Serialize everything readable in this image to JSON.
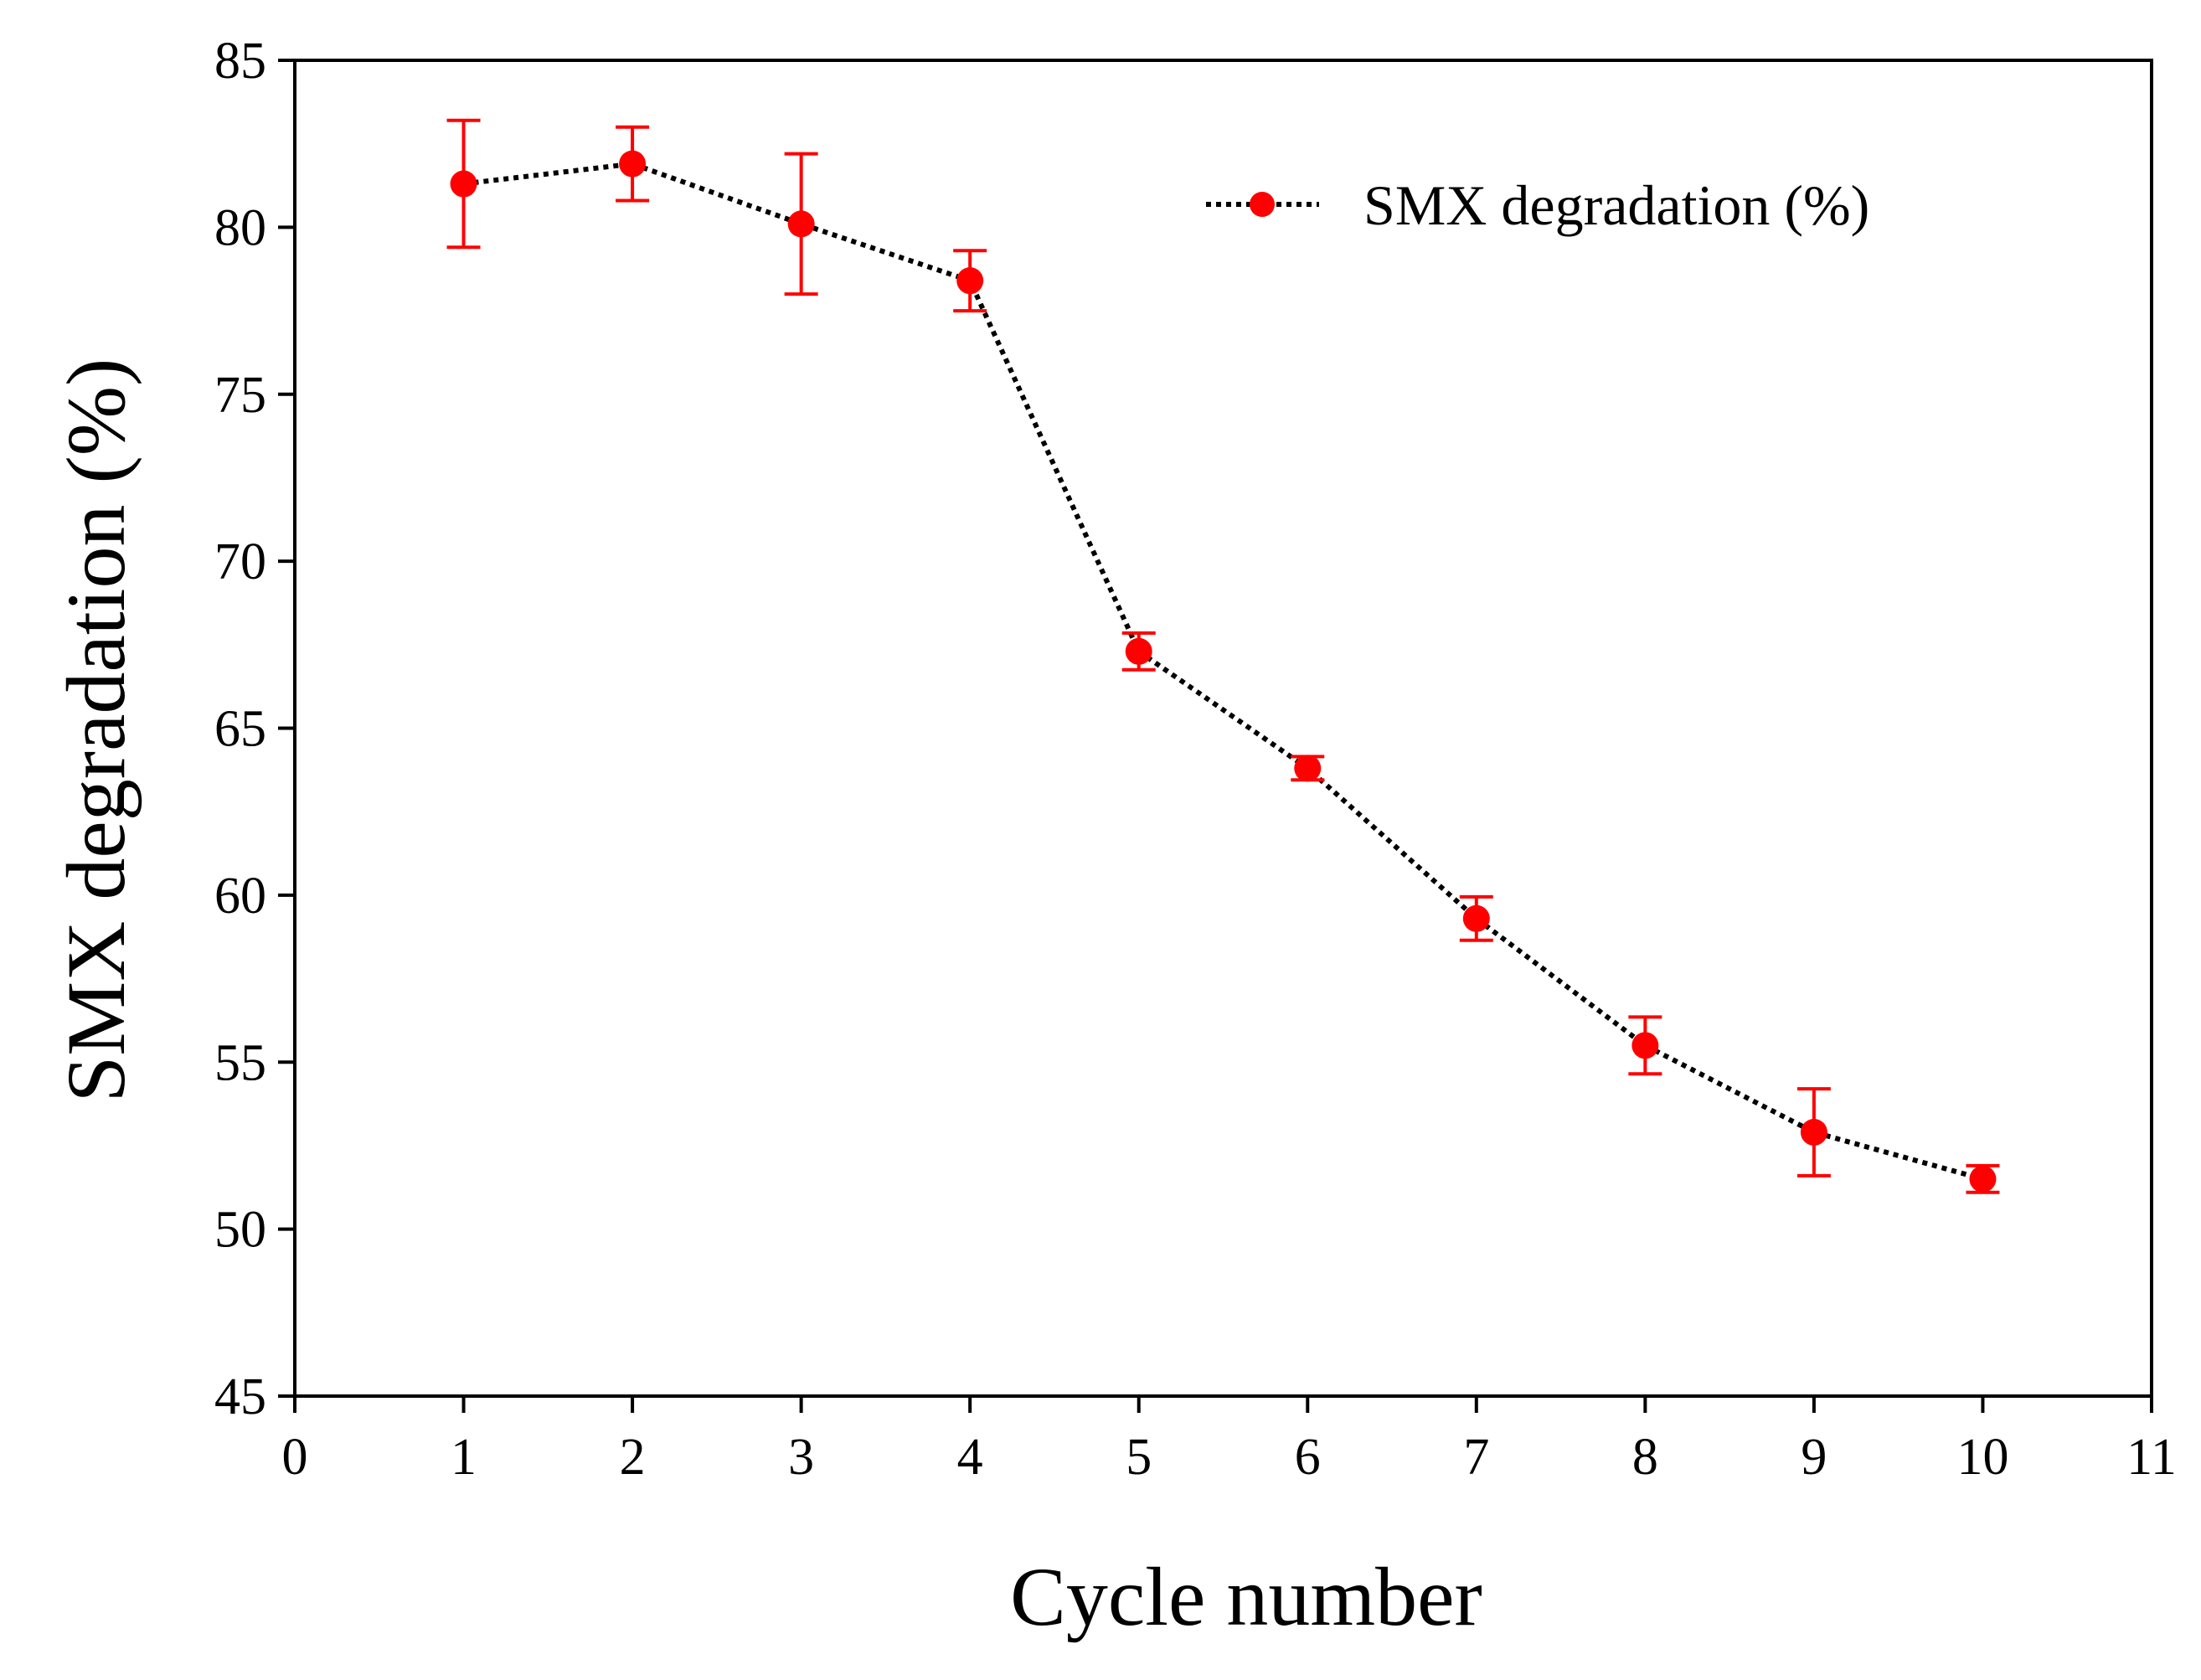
{
  "chart_data": {
    "type": "line",
    "title": "",
    "xlabel": "Cycle number",
    "ylabel": "SMX degradation (%)",
    "xlim": [
      0,
      11
    ],
    "ylim": [
      45,
      85
    ],
    "xticks": [
      "0",
      "1",
      "2",
      "3",
      "4",
      "5",
      "6",
      "7",
      "8",
      "9",
      "10",
      "11"
    ],
    "yticks": [
      "45",
      "50",
      "55",
      "60",
      "65",
      "70",
      "75",
      "80",
      "85"
    ],
    "grid": false,
    "legend_position": "top-right",
    "series": [
      {
        "name": "SMX degradation (%)",
        "color": "#ff0000",
        "line_color": "#000000",
        "line_style": "dotted",
        "marker": "circle",
        "x": [
          1,
          2,
          3,
          4,
          5,
          6,
          7,
          8,
          9,
          10
        ],
        "y": [
          81.3,
          81.9,
          80.1,
          78.4,
          67.3,
          63.8,
          59.3,
          55.5,
          52.9,
          51.5
        ],
        "error": [
          1.9,
          1.1,
          2.1,
          0.9,
          0.55,
          0.35,
          0.65,
          0.85,
          1.3,
          0.4
        ]
      }
    ]
  }
}
